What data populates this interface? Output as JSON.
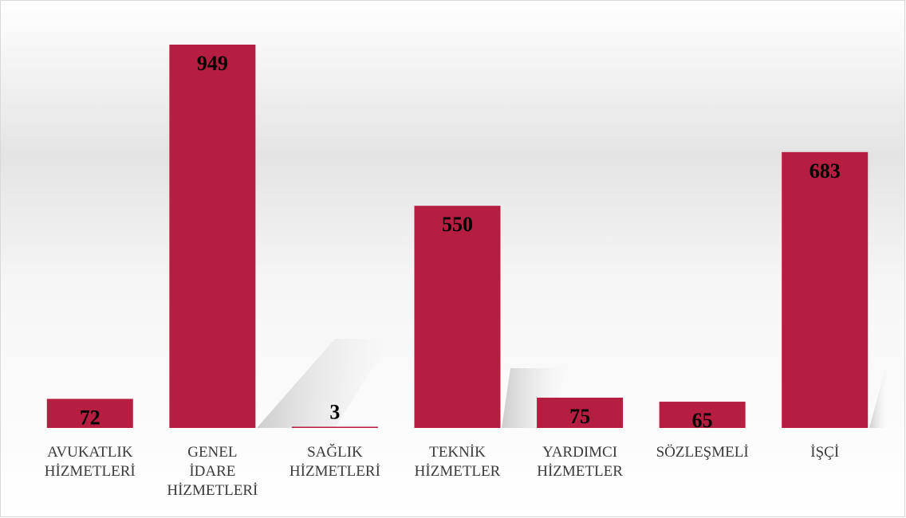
{
  "chart_data": {
    "type": "bar",
    "categories": [
      "AVUKATLIK HİZMETLERİ",
      "GENEL İDARE HİZMETLERİ",
      "SAĞLIK HİZMETLERİ",
      "TEKNİK HİZMETLER",
      "YARDIMCI HİZMETLER",
      "SÖZLEŞMELİ",
      "İŞÇİ"
    ],
    "values": [
      72,
      949,
      3,
      550,
      75,
      65,
      683
    ],
    "color": "#b51e41",
    "grid": false
  }
}
